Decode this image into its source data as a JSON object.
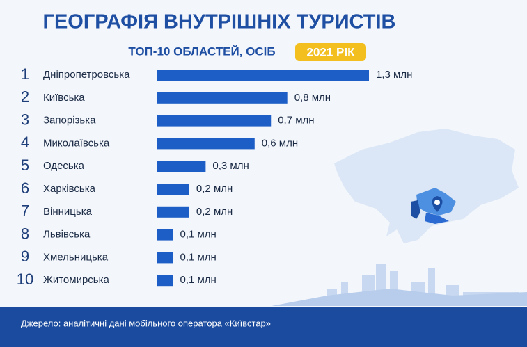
{
  "chart_data": {
    "type": "bar",
    "orientation": "horizontal",
    "title": "ГЕОГРАФІЯ ВНУТРІШНІХ ТУРИСТІВ",
    "subtitle": "ТОП-10 ОБЛАСТЕЙ, ОСІБ",
    "badge": "2021 РІК",
    "ranks": [
      1,
      2,
      3,
      4,
      5,
      6,
      7,
      8,
      9,
      10
    ],
    "categories": [
      "Дніпропетровська",
      "Київська",
      "Запорізька",
      "Миколаївська",
      "Одеська",
      "Харківська",
      "Вінницька",
      "Львівська",
      "Хмельницька",
      "Житомирська"
    ],
    "values": [
      1.3,
      0.8,
      0.7,
      0.6,
      0.3,
      0.2,
      0.2,
      0.1,
      0.1,
      0.1
    ],
    "value_labels": [
      "1,3 млн",
      "0,8 млн",
      "0,7 млн",
      "0,6 млн",
      "0,3 млн",
      "0,2 млн",
      "0,2 млн",
      "0,1 млн",
      "0,1 млн",
      "0,1 млн"
    ],
    "color": "#1c5ec6",
    "source": "Джерело:  аналітичні дані мобільного оператора «Київстар»"
  }
}
